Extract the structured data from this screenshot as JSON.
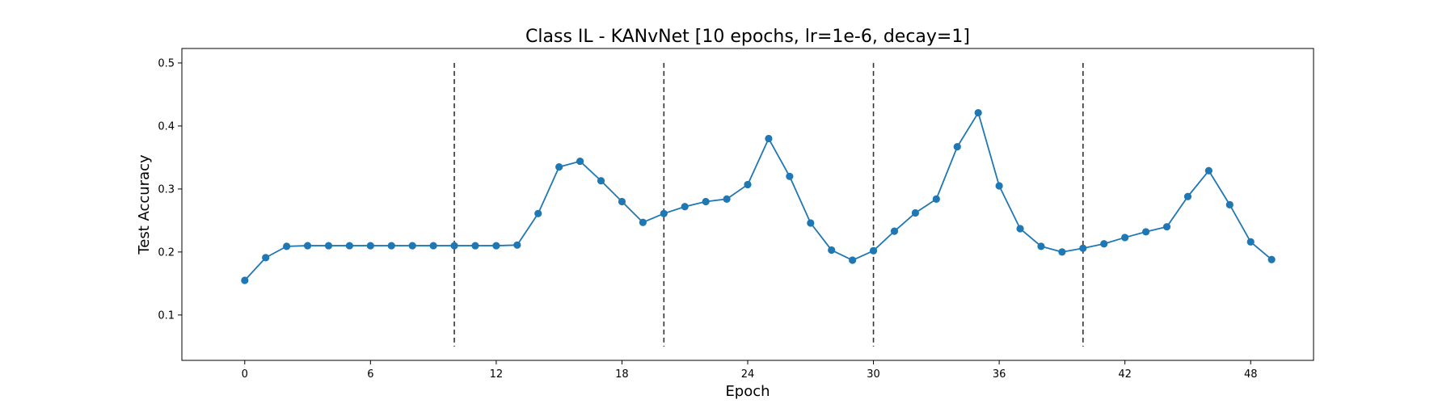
{
  "chart_data": {
    "type": "line",
    "title": "Class IL - KANvNet [10 epochs, lr=1e-6, decay=1]",
    "xlabel": "Epoch",
    "ylabel": "Test Accuracy",
    "xlim": [
      -3.0,
      51.0
    ],
    "ylim": [
      0.028,
      0.523
    ],
    "xticks": [
      0,
      6,
      12,
      18,
      24,
      30,
      36,
      42,
      48
    ],
    "yticks": [
      0.1,
      0.2,
      0.3,
      0.4,
      0.5
    ],
    "ytick_labels": [
      "0.1",
      "0.2",
      "0.3",
      "0.4",
      "0.5"
    ],
    "grid": false,
    "series": [
      {
        "color": "#1f77b4",
        "marker": "circle",
        "x": [
          0,
          1,
          2,
          3,
          4,
          5,
          6,
          7,
          8,
          9,
          10,
          11,
          12,
          13,
          14,
          15,
          16,
          17,
          18,
          19,
          20,
          21,
          22,
          23,
          24,
          25,
          26,
          27,
          28,
          29,
          30,
          31,
          32,
          33,
          34,
          35,
          36,
          37,
          38,
          39,
          40,
          41,
          42,
          43,
          44,
          45,
          46,
          47,
          48,
          49
        ],
        "y": [
          0.155,
          0.191,
          0.209,
          0.21,
          0.21,
          0.21,
          0.21,
          0.21,
          0.21,
          0.21,
          0.21,
          0.21,
          0.21,
          0.211,
          0.261,
          0.335,
          0.344,
          0.313,
          0.28,
          0.247,
          0.261,
          0.272,
          0.28,
          0.284,
          0.307,
          0.38,
          0.32,
          0.246,
          0.203,
          0.187,
          0.202,
          0.233,
          0.262,
          0.284,
          0.367,
          0.421,
          0.305,
          0.237,
          0.209,
          0.2,
          0.206,
          0.213,
          0.223,
          0.232,
          0.24,
          0.288,
          0.329,
          0.275,
          0.216,
          0.188
        ]
      }
    ],
    "vlines": {
      "x": [
        10,
        20,
        30,
        40
      ],
      "y_range": [
        0.05,
        0.5
      ],
      "style": "dashed",
      "color": "#333333"
    }
  }
}
